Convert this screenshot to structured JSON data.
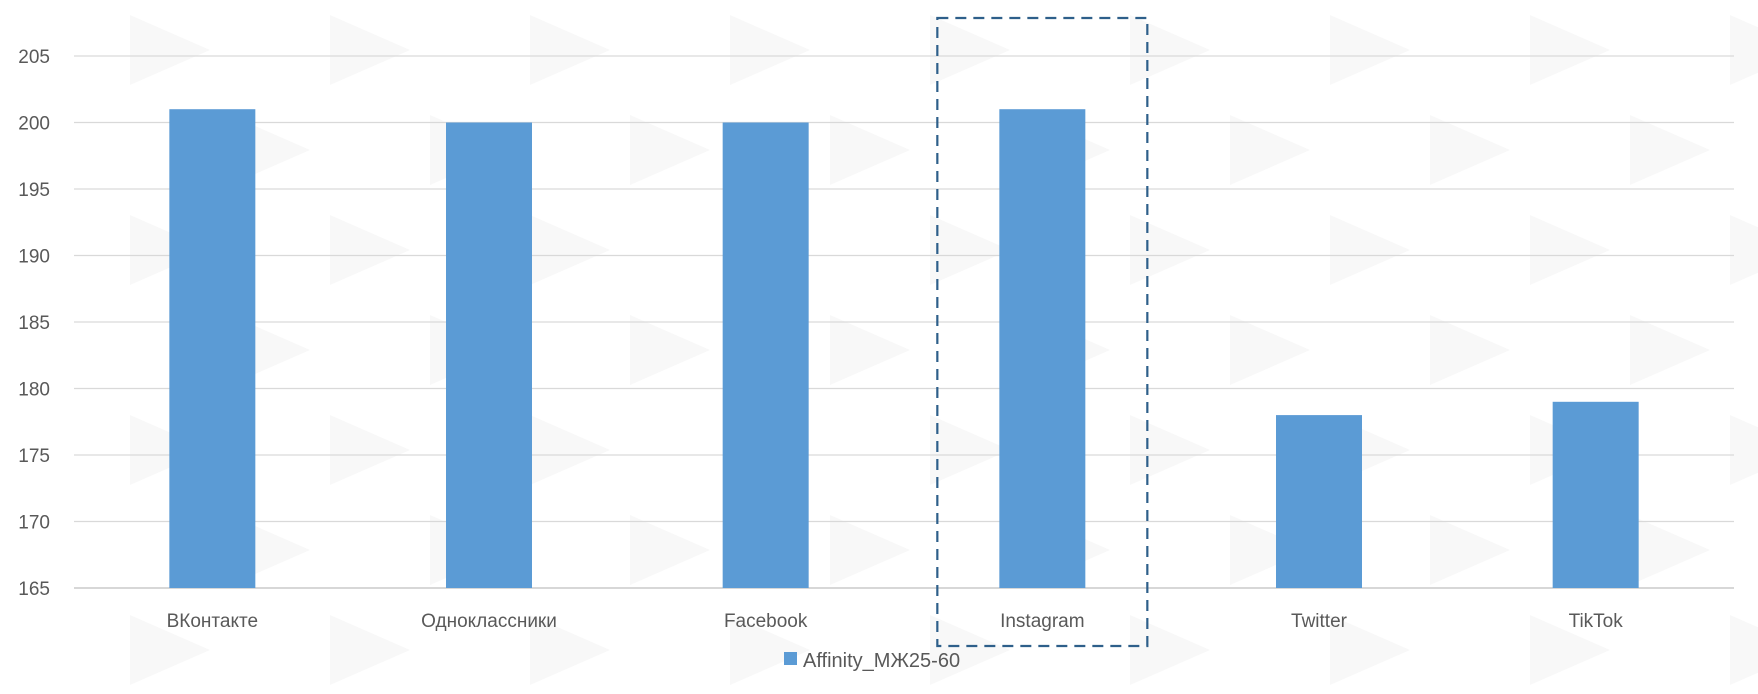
{
  "chart_data": {
    "type": "bar",
    "categories": [
      "ВКонтакте",
      "Одноклассники",
      "Facebook",
      "Instagram",
      "Twitter",
      "TikTok"
    ],
    "series": [
      {
        "name": "Affinity_МЖ25-60",
        "values": [
          201,
          200,
          200,
          201,
          178,
          179
        ]
      }
    ],
    "title": "",
    "xlabel": "",
    "ylabel": "",
    "ylim": [
      165,
      205
    ],
    "yticks": [
      165,
      170,
      175,
      180,
      185,
      190,
      195,
      200,
      205
    ],
    "grid": true,
    "legend_position": "bottom",
    "highlighted_category": "Instagram",
    "colors": {
      "bar": "#5b9bd5",
      "grid": "#d9d9d9",
      "axis": "#bfbfbf",
      "highlight_border": "#2e5f8a",
      "text": "#595959"
    }
  }
}
